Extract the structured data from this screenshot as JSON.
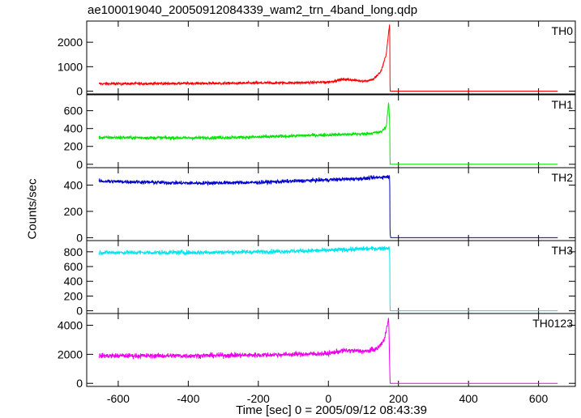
{
  "title": "ae100019040_20050912084339_wam2_trn_4band_long.qdp",
  "chart_data": {
    "type": "line",
    "xlabel": "Time [sec] 0 = 2005/09/12 08:43:39",
    "ylabel": "Counts/sec",
    "xlim": [
      -690,
      705
    ],
    "x_ticks": [
      -600,
      -400,
      -200,
      0,
      200,
      400,
      600
    ],
    "panels": [
      {
        "name": "TH0",
        "color": "#ff0000",
        "ylim": [
          -50,
          2800
        ],
        "y_ticks": [
          0,
          1000,
          2000
        ],
        "points": [
          [
            -655,
            300
          ],
          [
            -500,
            310
          ],
          [
            -300,
            320
          ],
          [
            -100,
            340
          ],
          [
            0,
            370
          ],
          [
            40,
            480
          ],
          [
            60,
            470
          ],
          [
            90,
            420
          ],
          [
            110,
            420
          ],
          [
            130,
            500
          ],
          [
            150,
            800
          ],
          [
            165,
            1500
          ],
          [
            175,
            2800
          ],
          [
            176,
            0
          ],
          [
            655,
            0
          ]
        ]
      },
      {
        "name": "TH1",
        "color": "#00e400",
        "ylim": [
          -20,
          760
        ],
        "y_ticks": [
          0,
          200,
          400,
          600
        ],
        "points": [
          [
            -655,
            300
          ],
          [
            -400,
            295
          ],
          [
            -200,
            305
          ],
          [
            0,
            330
          ],
          [
            100,
            340
          ],
          [
            150,
            360
          ],
          [
            165,
            420
          ],
          [
            172,
            700
          ],
          [
            175,
            460
          ],
          [
            176,
            0
          ],
          [
            655,
            0
          ]
        ]
      },
      {
        "name": "TH2",
        "color": "#0000cc",
        "ylim": [
          -10,
          520
        ],
        "y_ticks": [
          0,
          200,
          400
        ],
        "points": [
          [
            -655,
            430
          ],
          [
            -400,
            415
          ],
          [
            -200,
            420
          ],
          [
            0,
            440
          ],
          [
            100,
            450
          ],
          [
            175,
            465
          ],
          [
            176,
            30
          ],
          [
            178,
            0
          ],
          [
            655,
            0
          ]
        ]
      },
      {
        "name": "TH3",
        "color": "#00e5ee",
        "ylim": [
          -15,
          930
        ],
        "y_ticks": [
          0,
          200,
          400,
          600,
          800
        ],
        "points": [
          [
            -655,
            790
          ],
          [
            -400,
            790
          ],
          [
            -200,
            800
          ],
          [
            0,
            820
          ],
          [
            100,
            840
          ],
          [
            175,
            850
          ],
          [
            176,
            0
          ],
          [
            655,
            0
          ]
        ]
      },
      {
        "name": "TH0123",
        "color": "#ee00ee",
        "ylim": [
          -100,
          4700
        ],
        "y_ticks": [
          0,
          2000,
          4000
        ],
        "points": [
          [
            -655,
            1900
          ],
          [
            -400,
            1900
          ],
          [
            -200,
            1950
          ],
          [
            0,
            2050
          ],
          [
            40,
            2250
          ],
          [
            70,
            2250
          ],
          [
            110,
            2200
          ],
          [
            140,
            2400
          ],
          [
            160,
            3000
          ],
          [
            172,
            4600
          ],
          [
            176,
            0
          ],
          [
            655,
            0
          ]
        ]
      }
    ]
  }
}
